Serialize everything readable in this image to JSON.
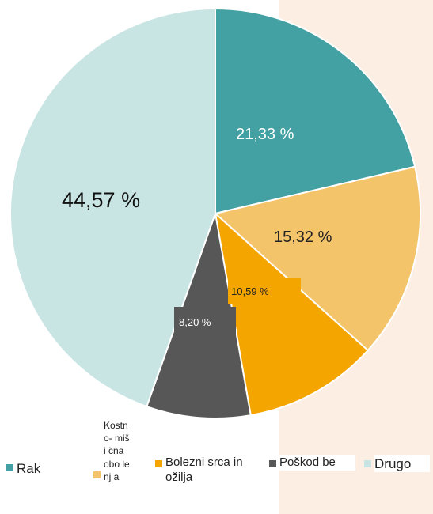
{
  "chart_data": {
    "type": "pie",
    "title": "",
    "categories": [
      "Rak",
      "Kostno-mišična obolenja",
      "Bolezni srca in ožilja",
      "Poškodbe",
      "Drugo"
    ],
    "values": [
      21.33,
      15.32,
      10.59,
      8.2,
      44.57
    ],
    "value_labels": [
      "21,33 %",
      "15,32 %",
      "10,59 %",
      "8,20 %",
      "44,57 %"
    ],
    "legend_labels": [
      "Rak",
      "Kostn o- miši čna obo lenj a",
      "Bolezni srca in ožilja",
      "Poškod be",
      "Drugo"
    ],
    "colors": [
      "#43a1a3",
      "#f3c46a",
      "#f5a500",
      "#575757",
      "#c8e4e3"
    ],
    "start_angle_deg": 0,
    "direction": "clockwise",
    "legend_position": "bottom"
  }
}
